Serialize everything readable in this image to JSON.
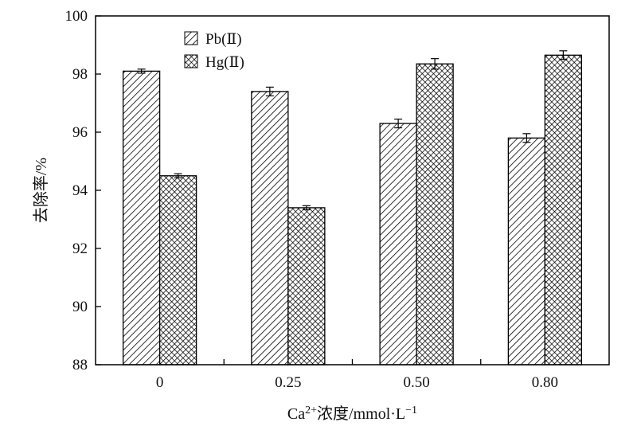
{
  "chart_data": {
    "type": "bar",
    "categories": [
      "0",
      "0.25",
      "0.50",
      "0.80"
    ],
    "series": [
      {
        "name": "Pb(Ⅱ)",
        "values": [
          98.1,
          97.4,
          96.3,
          95.8
        ],
        "errors": [
          0.07,
          0.15,
          0.15,
          0.15
        ],
        "pattern": "diagonal-hatch"
      },
      {
        "name": "Hg(Ⅱ)",
        "values": [
          94.5,
          93.4,
          98.35,
          98.65
        ],
        "errors": [
          0.07,
          0.07,
          0.18,
          0.15
        ],
        "pattern": "crosshatch"
      }
    ],
    "ylabel": "去除率/%",
    "xlabel": "Ca²⁺浓度/mmol·L⁻¹",
    "xlabel_parts": {
      "pre": "Ca",
      "sup1": "2+",
      "mid": "浓度/mmol·L",
      "sup2": "−1"
    },
    "ylim": [
      88,
      100
    ],
    "yticks": [
      88,
      90,
      92,
      94,
      96,
      98,
      100
    ],
    "grid": false,
    "legend_position": "top-left"
  }
}
